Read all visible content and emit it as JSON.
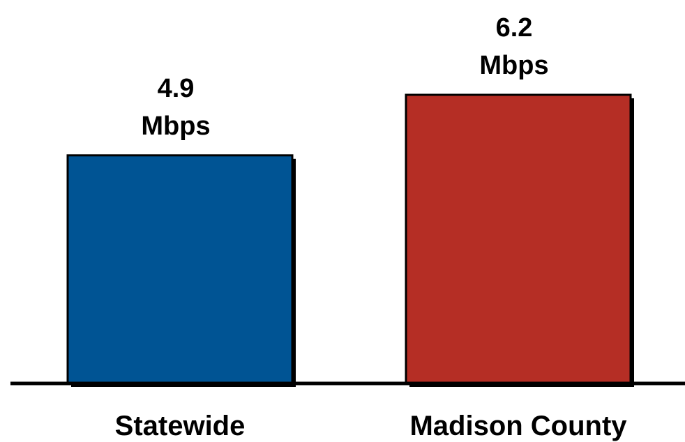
{
  "chart_data": {
    "type": "bar",
    "categories": [
      "Statewide",
      "Madison County"
    ],
    "values": [
      4.9,
      6.2
    ],
    "data_labels": [
      [
        "4.9",
        "Mbps"
      ],
      [
        "6.2",
        "Mbps"
      ]
    ],
    "colors": [
      "#005494",
      "#B52E25"
    ],
    "title": "",
    "xlabel": "",
    "ylabel": "",
    "ylim": [
      0,
      6.2
    ],
    "grid": false
  }
}
